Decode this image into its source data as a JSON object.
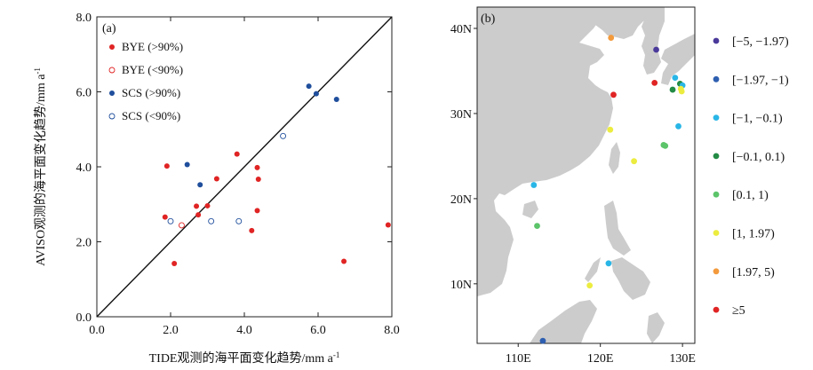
{
  "chart_data": [
    {
      "type": "scatter",
      "panel_label": "(a)",
      "xlabel": "TIDE观测的海平面变化趋势/mm a",
      "xlabel_sup": "-1",
      "ylabel": "AVISO观测的海平面变化趋势/mm a",
      "ylabel_sup": "-1",
      "xlim": [
        0,
        8
      ],
      "ylim": [
        0,
        8
      ],
      "xticks": [
        "0.0",
        "2.0",
        "4.0",
        "6.0",
        "8.0"
      ],
      "yticks": [
        "0.0",
        "2.0",
        "4.0",
        "6.0",
        "8.0"
      ],
      "reference_line": "1:1",
      "legend_position": "top-left",
      "colors": {
        "bye": "#e02424",
        "scs": "#1f4e9c"
      },
      "series": [
        {
          "name": "BYE (>90%)",
          "marker": "filled",
          "color": "#e02424",
          "points": [
            [
              1.9,
              4.02
            ],
            [
              1.85,
              2.66
            ],
            [
              2.1,
              1.42
            ],
            [
              2.7,
              2.95
            ],
            [
              2.75,
              2.72
            ],
            [
              3.0,
              2.96
            ],
            [
              3.25,
              3.68
            ],
            [
              3.8,
              4.34
            ],
            [
              4.35,
              3.98
            ],
            [
              4.38,
              3.67
            ],
            [
              4.35,
              2.83
            ],
            [
              4.2,
              2.3
            ],
            [
              6.7,
              1.48
            ],
            [
              7.9,
              2.45
            ]
          ]
        },
        {
          "name": "BYE (<90%)",
          "marker": "open",
          "color": "#e02424",
          "points": [
            [
              2.3,
              2.44
            ]
          ]
        },
        {
          "name": "SCS (>90%)",
          "marker": "filled",
          "color": "#1f4e9c",
          "points": [
            [
              2.45,
              4.06
            ],
            [
              2.8,
              3.52
            ],
            [
              5.75,
              6.15
            ],
            [
              5.95,
              5.95
            ],
            [
              6.5,
              5.8
            ]
          ]
        },
        {
          "name": "SCS (<90%)",
          "marker": "open",
          "color": "#1f4e9c",
          "points": [
            [
              2.0,
              2.55
            ],
            [
              3.1,
              2.55
            ],
            [
              3.85,
              2.55
            ],
            [
              5.05,
              4.82
            ]
          ]
        }
      ]
    },
    {
      "type": "map",
      "panel_label": "(b)",
      "lon_range": [
        105,
        131.5
      ],
      "lat_range": [
        3,
        42.5
      ],
      "lat_ticks": [
        "10N",
        "20N",
        "30N",
        "40N"
      ],
      "lon_ticks": [
        "110E",
        "120E",
        "130E"
      ],
      "lat_tick_values": [
        10,
        20,
        30,
        40
      ],
      "lon_tick_values": [
        110,
        120,
        130
      ],
      "land_color": "#cccccc",
      "legend": [
        {
          "label": "[−5, −1.97)",
          "color": "#4b3a9a"
        },
        {
          "label": "[−1.97, −1)",
          "color": "#2e5fb0"
        },
        {
          "label": "[−1, −0.1)",
          "color": "#29b6e6"
        },
        {
          "label": "[−0.1, 0.1)",
          "color": "#238b45"
        },
        {
          "label": "[0.1, 1)",
          "color": "#5cc46a"
        },
        {
          "label": "[1, 1.97)",
          "color": "#ecec40"
        },
        {
          "label": "[1.97, 5)",
          "color": "#f39a3c"
        },
        {
          "label": "≥5",
          "color": "#e02424"
        }
      ],
      "stations": [
        {
          "lon": 121.3,
          "lat": 38.9,
          "class": 6
        },
        {
          "lon": 126.8,
          "lat": 37.5,
          "class": 0
        },
        {
          "lon": 121.6,
          "lat": 32.2,
          "class": 7
        },
        {
          "lon": 126.6,
          "lat": 33.6,
          "class": 7
        },
        {
          "lon": 129.1,
          "lat": 34.2,
          "class": 2
        },
        {
          "lon": 129.7,
          "lat": 33.5,
          "class": 3
        },
        {
          "lon": 130.0,
          "lat": 33.3,
          "class": 2
        },
        {
          "lon": 128.8,
          "lat": 32.8,
          "class": 3
        },
        {
          "lon": 129.8,
          "lat": 32.9,
          "class": 5
        },
        {
          "lon": 129.9,
          "lat": 32.6,
          "class": 5
        },
        {
          "lon": 129.5,
          "lat": 28.5,
          "class": 2
        },
        {
          "lon": 121.2,
          "lat": 28.1,
          "class": 5
        },
        {
          "lon": 127.7,
          "lat": 26.3,
          "class": 4
        },
        {
          "lon": 127.9,
          "lat": 26.2,
          "class": 4
        },
        {
          "lon": 124.1,
          "lat": 24.4,
          "class": 5
        },
        {
          "lon": 111.9,
          "lat": 21.6,
          "class": 2
        },
        {
          "lon": 112.3,
          "lat": 16.8,
          "class": 4
        },
        {
          "lon": 121.0,
          "lat": 12.4,
          "class": 2
        },
        {
          "lon": 118.7,
          "lat": 9.8,
          "class": 5
        },
        {
          "lon": 113.0,
          "lat": 3.3,
          "class": 1
        }
      ]
    }
  ]
}
